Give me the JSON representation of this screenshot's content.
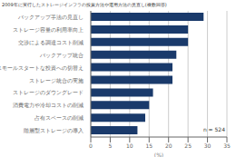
{
  "chart_data": {
    "type": "bar",
    "orientation": "horizontal",
    "title": "2009年に実行したストレージインフラの投資方法や運用方法の見直し(複数回答)",
    "categories": [
      "バックアップ手法の見直し",
      "ストレージ容量の利用率向上",
      "交渉による調達コスト削減",
      "バックアップ統合",
      "スモールスタートな投資への切替え",
      "ストレージ統合の実施",
      "ストレージのダウングレード",
      "消費電力や冷却コストの削減",
      "占有スペースの削減",
      "階層型ストレージの導入"
    ],
    "values": [
      29,
      25,
      25,
      22,
      21,
      21,
      16,
      15,
      14,
      12
    ],
    "color": "#1a3a6b",
    "xlabel": "(%)",
    "xlim": [
      0,
      35
    ],
    "xticks": [
      0,
      5,
      10,
      15,
      20,
      25,
      30,
      35
    ],
    "annotation": "n = 524",
    "grid": true
  }
}
